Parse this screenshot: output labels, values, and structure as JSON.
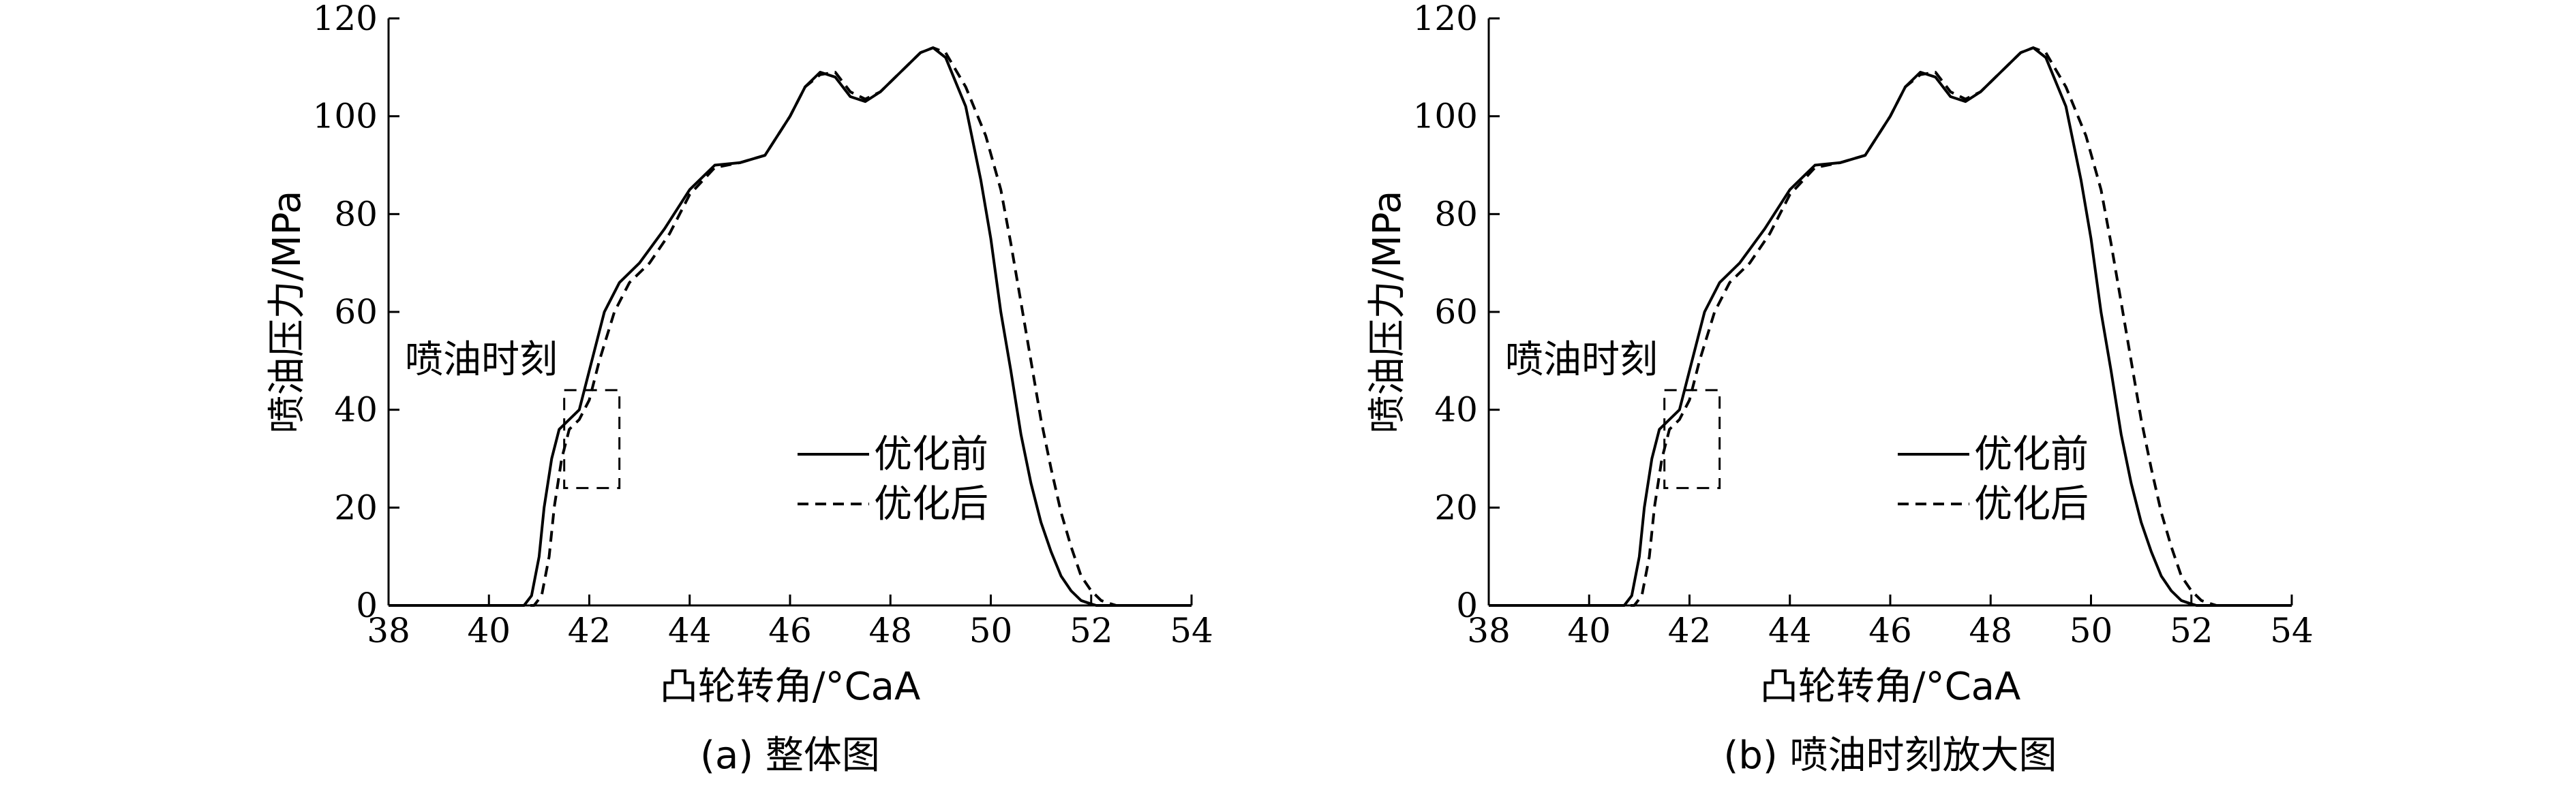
{
  "chart_data": [
    {
      "type": "line",
      "caption": "(a) 整体图",
      "xlabel": "凸轮转角/°CaA",
      "ylabel": "喷油压力/MPa",
      "xlim": [
        38,
        54
      ],
      "ylim": [
        0,
        120
      ],
      "xticks": [
        38,
        40,
        42,
        44,
        46,
        48,
        50,
        52,
        54
      ],
      "yticks": [
        0,
        20,
        40,
        60,
        80,
        100,
        120
      ],
      "grid": false,
      "legend_position": "right-middle",
      "annotation": {
        "text": "喷油时刻",
        "box_x": [
          41.5,
          42.6
        ],
        "box_y": [
          24,
          44
        ]
      },
      "series": [
        {
          "name": "优化前",
          "style": "solid",
          "x": [
            38,
            40.7,
            40.85,
            41.0,
            41.1,
            41.25,
            41.4,
            41.6,
            41.8,
            42.0,
            42.3,
            42.6,
            43.0,
            43.5,
            44.0,
            44.5,
            45.0,
            45.5,
            46.0,
            46.3,
            46.6,
            46.9,
            47.2,
            47.5,
            47.8,
            48.2,
            48.6,
            48.85,
            49.1,
            49.5,
            49.8,
            50.0,
            50.2,
            50.4,
            50.6,
            50.8,
            51.0,
            51.2,
            51.4,
            51.6,
            51.8,
            52.0,
            52.1,
            52.2,
            54
          ],
          "y": [
            0,
            0,
            2,
            10,
            20,
            30,
            36,
            38,
            40,
            48,
            60,
            66,
            70,
            77,
            85,
            90,
            90.5,
            92,
            100,
            106,
            109,
            108,
            104,
            103,
            105,
            109,
            113,
            114,
            112,
            102,
            87,
            75,
            60,
            48,
            35,
            25,
            17,
            11,
            6,
            3,
            1,
            0.3,
            0,
            0,
            0
          ]
        },
        {
          "name": "优化后",
          "style": "dashed",
          "x": [
            38,
            40.9,
            41.05,
            41.2,
            41.3,
            41.45,
            41.6,
            41.8,
            42.0,
            42.2,
            42.5,
            42.8,
            43.2,
            43.6,
            44.0,
            44.5,
            45.0,
            45.5,
            46.0,
            46.3,
            46.6,
            46.9,
            47.2,
            47.5,
            47.8,
            48.2,
            48.6,
            48.85,
            49.1,
            49.5,
            49.9,
            50.2,
            50.4,
            50.6,
            50.8,
            51.0,
            51.2,
            51.4,
            51.6,
            51.8,
            52.0,
            52.2,
            52.4,
            52.5,
            54
          ],
          "y": [
            0,
            0,
            2,
            10,
            20,
            30,
            36,
            38,
            42,
            50,
            60,
            66,
            70,
            76,
            84,
            89.5,
            90.5,
            92,
            100,
            106,
            108.5,
            109,
            105,
            103.5,
            105,
            109,
            113,
            114,
            113,
            106,
            96,
            85,
            74,
            62,
            50,
            38,
            28,
            19,
            12,
            6,
            3,
            1,
            0.3,
            0,
            0
          ]
        }
      ]
    },
    {
      "type": "line",
      "caption": "(b) 喷油时刻放大图",
      "xlabel": "凸轮转角/°CaA",
      "ylabel": "喷油压力/MPa",
      "xlim": [
        38,
        54
      ],
      "ylim": [
        0,
        120
      ],
      "xticks": [
        38,
        40,
        42,
        44,
        46,
        48,
        50,
        52,
        54
      ],
      "yticks": [
        0,
        20,
        40,
        60,
        80,
        100,
        120
      ],
      "grid": false,
      "legend_position": "right-middle",
      "annotation": {
        "text": "喷油时刻",
        "box_x": [
          41.5,
          42.6
        ],
        "box_y": [
          24,
          44
        ]
      },
      "series": [
        {
          "name": "优化前",
          "style": "solid",
          "x": [
            38,
            40.7,
            40.85,
            41.0,
            41.1,
            41.25,
            41.4,
            41.6,
            41.8,
            42.0,
            42.3,
            42.6,
            43.0,
            43.5,
            44.0,
            44.5,
            45.0,
            45.5,
            46.0,
            46.3,
            46.6,
            46.9,
            47.2,
            47.5,
            47.8,
            48.2,
            48.6,
            48.85,
            49.1,
            49.5,
            49.8,
            50.0,
            50.2,
            50.4,
            50.6,
            50.8,
            51.0,
            51.2,
            51.4,
            51.6,
            51.8,
            52.0,
            52.1,
            52.2,
            54
          ],
          "y": [
            0,
            0,
            2,
            10,
            20,
            30,
            36,
            38,
            40,
            48,
            60,
            66,
            70,
            77,
            85,
            90,
            90.5,
            92,
            100,
            106,
            109,
            108,
            104,
            103,
            105,
            109,
            113,
            114,
            112,
            102,
            87,
            75,
            60,
            48,
            35,
            25,
            17,
            11,
            6,
            3,
            1,
            0.3,
            0,
            0,
            0
          ]
        },
        {
          "name": "优化后",
          "style": "dashed",
          "x": [
            38,
            40.9,
            41.05,
            41.2,
            41.3,
            41.45,
            41.6,
            41.8,
            42.0,
            42.2,
            42.5,
            42.8,
            43.2,
            43.6,
            44.0,
            44.5,
            45.0,
            45.5,
            46.0,
            46.3,
            46.6,
            46.9,
            47.2,
            47.5,
            47.8,
            48.2,
            48.6,
            48.85,
            49.1,
            49.5,
            49.9,
            50.2,
            50.4,
            50.6,
            50.8,
            51.0,
            51.2,
            51.4,
            51.6,
            51.8,
            52.0,
            52.2,
            52.4,
            52.5,
            54
          ],
          "y": [
            0,
            0,
            2,
            10,
            20,
            30,
            36,
            38,
            42,
            50,
            60,
            66,
            70,
            76,
            84,
            89.5,
            90.5,
            92,
            100,
            106,
            108.5,
            109,
            105,
            103.5,
            105,
            109,
            113,
            114,
            113,
            106,
            96,
            85,
            74,
            62,
            50,
            38,
            28,
            19,
            12,
            6,
            3,
            1,
            0.3,
            0,
            0
          ]
        }
      ]
    }
  ]
}
